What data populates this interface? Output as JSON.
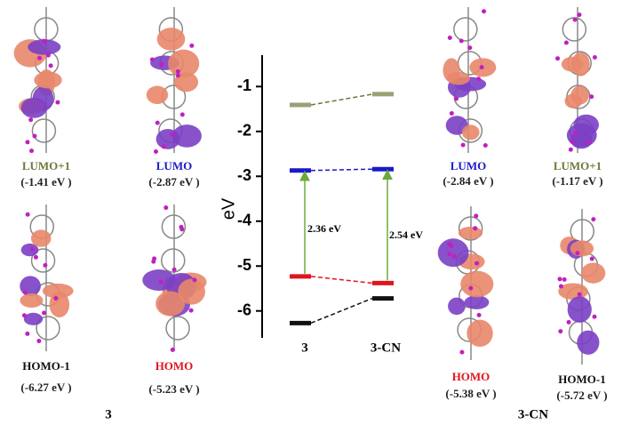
{
  "chart_data": {
    "type": "energy-level",
    "y_label": "eV",
    "categories": [
      "3",
      "3-CN"
    ],
    "series": [
      {
        "name": "LUMO+1",
        "color": "#6b7a3a",
        "values": [
          -1.41,
          -1.17
        ],
        "value_labels": [
          "(-1.41 eV )",
          "(-1.17 eV )"
        ]
      },
      {
        "name": "LUMO",
        "color": "#1a1ac8",
        "values": [
          -2.87,
          -2.84
        ],
        "value_labels": [
          "(-2.87 eV )",
          "(-2.84 eV )"
        ]
      },
      {
        "name": "HOMO",
        "color": "#e0141e",
        "values": [
          -5.23,
          -5.38
        ],
        "value_labels": [
          "(-5.23 eV )",
          "(-5.38 eV )"
        ]
      },
      {
        "name": "HOMO-1",
        "color": "#111111",
        "values": [
          -6.27,
          -5.72
        ],
        "value_labels": [
          "(-6.27 eV )",
          "(-5.72 eV )"
        ]
      }
    ],
    "annotations": [
      {
        "text": "2.36 eV"
      },
      {
        "text": "2.54 eV"
      }
    ],
    "ylim": [
      -6.6,
      -0.3
    ],
    "yticks": [
      -1,
      -2,
      -3,
      -4,
      -5,
      -6
    ]
  }
}
